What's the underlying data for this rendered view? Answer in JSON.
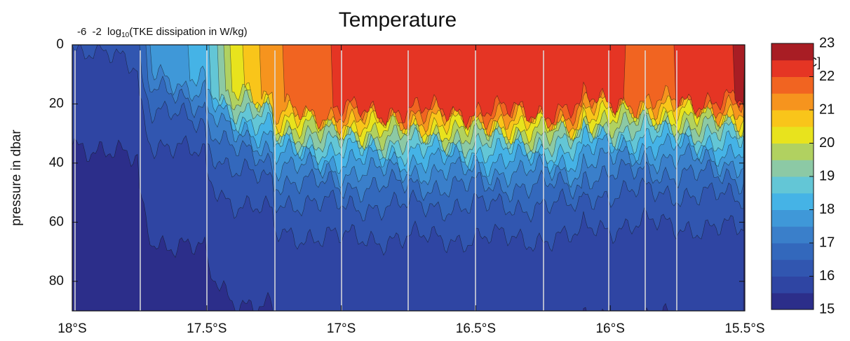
{
  "chart_data": {
    "type": "contour",
    "title": "Temperature",
    "ylabel": "pressure in dbar",
    "top_axis": {
      "ticks": [
        "-6",
        "-2"
      ],
      "label_base": "log",
      "label_sub": "10",
      "label_rest": "(TKE dissipation in W/kg)"
    },
    "xlim": [
      -18,
      -15.5
    ],
    "xticks": [
      {
        "value": -18,
        "label": "18°S"
      },
      {
        "value": -17.5,
        "label": "17.5°S"
      },
      {
        "value": -17,
        "label": "17°S"
      },
      {
        "value": -16.5,
        "label": "16.5°S"
      },
      {
        "value": -16,
        "label": "16°S"
      },
      {
        "value": -15.5,
        "label": "15.5°S"
      }
    ],
    "ylim": [
      0,
      90
    ],
    "yticks": [
      0,
      20,
      40,
      60,
      80
    ],
    "y_inverted": true,
    "colorbar": {
      "unit": "[°C]",
      "lim": [
        15,
        23
      ],
      "ticks": [
        15,
        16,
        17,
        18,
        19,
        20,
        21,
        22,
        23
      ],
      "colors": [
        "#2c2e8a",
        "#2f45a3",
        "#3156b0",
        "#3368bc",
        "#3a7fca",
        "#3f98d8",
        "#45b3e6",
        "#63c6d6",
        "#8cc9a5",
        "#b1d160",
        "#e8e31d",
        "#f9c51a",
        "#f6941e",
        "#f16421",
        "#e53524",
        "#a81d24"
      ]
    }
  }
}
